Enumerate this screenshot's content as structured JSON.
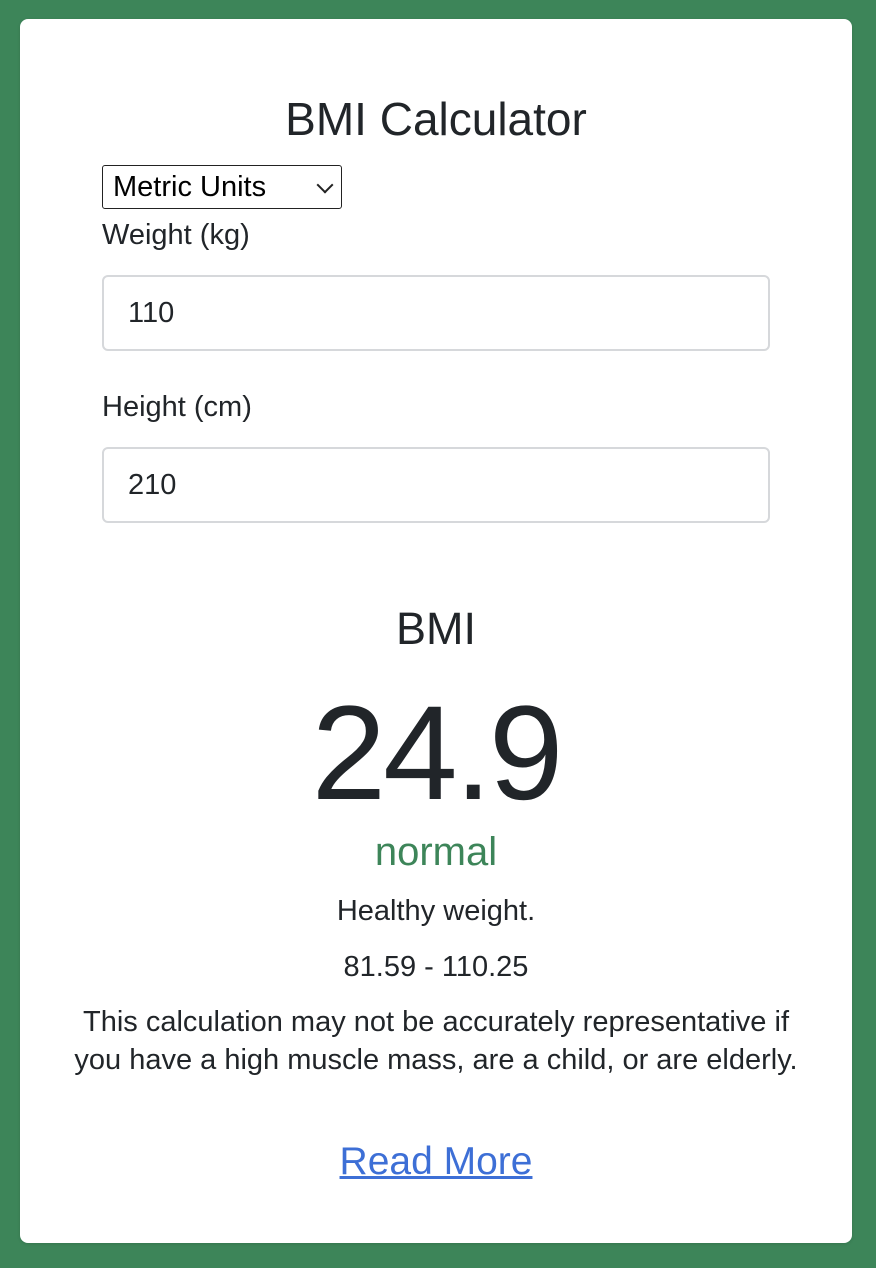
{
  "page": {
    "title": "BMI Calculator"
  },
  "units": {
    "selected": "Metric Units"
  },
  "weight": {
    "label": "Weight (kg)",
    "value": "110"
  },
  "height": {
    "label": "Height (cm)",
    "value": "210"
  },
  "result": {
    "label": "BMI",
    "value": "24.9",
    "category": "normal",
    "description": "Healthy weight.",
    "range": "81.59 - 110.25",
    "disclaimer": "This calculation may not be accurately representative if you have a high muscle mass, are a child, or are elderly.",
    "link_label": "Read More"
  },
  "colors": {
    "background": "#3d8559",
    "category": "#3d8559",
    "link": "#3d6fd6"
  }
}
